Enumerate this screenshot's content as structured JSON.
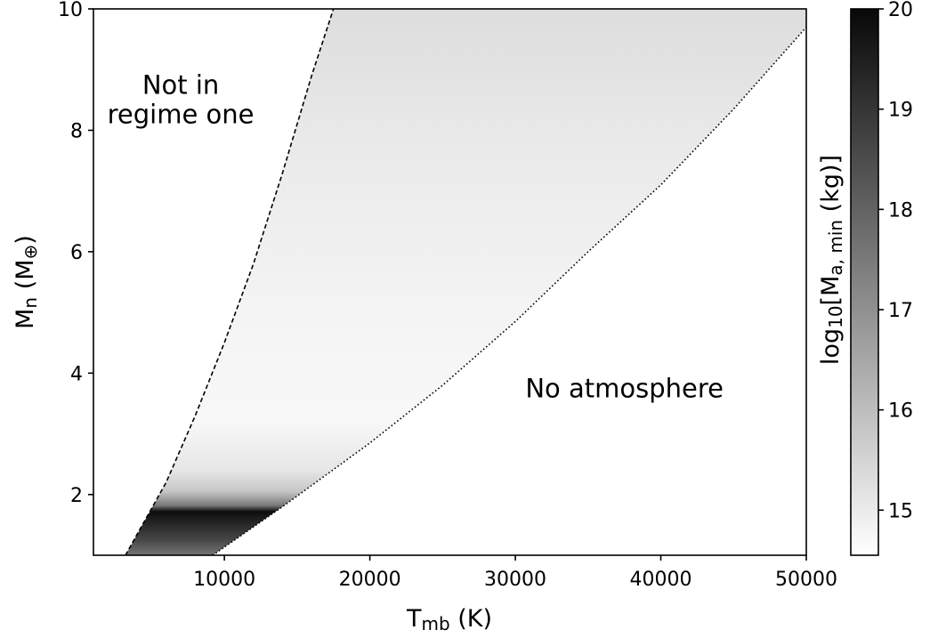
{
  "chart_data": {
    "type": "heatmap",
    "x": {
      "range": [
        1000,
        50000
      ],
      "ticks": [
        10000,
        20000,
        30000,
        40000,
        50000
      ],
      "tick_labels": [
        "10000",
        "20000",
        "30000",
        "40000",
        "50000"
      ],
      "label_main": "T",
      "label_sub": "mb",
      "label_unit": " (K)"
    },
    "y": {
      "range": [
        1,
        10
      ],
      "ticks": [
        2,
        4,
        6,
        8,
        10
      ],
      "tick_labels": [
        "2",
        "4",
        "6",
        "8",
        "10"
      ],
      "label_main": "M",
      "label_sub": "n",
      "label_unit_open": " (M",
      "label_unit_sub": "⊕",
      "label_unit_close": ")"
    },
    "colorbar": {
      "range": [
        14.55,
        20.0
      ],
      "ticks": [
        15,
        16,
        17,
        18,
        19,
        20
      ],
      "tick_labels": [
        "15",
        "16",
        "17",
        "18",
        "19",
        "20"
      ],
      "label_pre": "log",
      "label_sub1": "10",
      "label_mid": "[M",
      "label_sub2": "a, min",
      "label_post": " (kg)]",
      "colormap": "Greys (white = low, black = high)"
    },
    "boundaries": [
      {
        "name": "regime one limit",
        "style": "dashed",
        "points": [
          [
            3200,
            1.0
          ],
          [
            6000,
            2.2
          ],
          [
            8000,
            3.3
          ],
          [
            10000,
            4.5
          ],
          [
            12000,
            5.8
          ],
          [
            14000,
            7.3
          ],
          [
            16000,
            8.9
          ],
          [
            17500,
            10.0
          ]
        ]
      },
      {
        "name": "no-atmosphere limit",
        "style": "dotted",
        "points": [
          [
            9200,
            1.0
          ],
          [
            14000,
            1.8
          ],
          [
            20000,
            2.85
          ],
          [
            25000,
            3.8
          ],
          [
            30000,
            4.85
          ],
          [
            35000,
            6.0
          ],
          [
            40000,
            7.1
          ],
          [
            45000,
            8.35
          ],
          [
            50000,
            9.7
          ]
        ]
      }
    ],
    "value_profile": [
      {
        "y": 1.0,
        "value": 17.6
      },
      {
        "y": 1.25,
        "value": 18.6
      },
      {
        "y": 1.55,
        "value": 19.4
      },
      {
        "y": 1.72,
        "value": 19.9
      },
      {
        "y": 1.82,
        "value": 17.5
      },
      {
        "y": 2.05,
        "value": 15.8
      },
      {
        "y": 2.4,
        "value": 15.1
      },
      {
        "y": 3.2,
        "value": 14.7
      },
      {
        "y": 5.0,
        "value": 14.8
      },
      {
        "y": 7.5,
        "value": 15.0
      },
      {
        "y": 10.0,
        "value": 15.3
      }
    ],
    "annotations": [
      {
        "lines": [
          "Not in",
          "regime one"
        ],
        "x": 7000,
        "y": 8.6
      },
      {
        "lines": [
          "No atmosphere"
        ],
        "x": 37500,
        "y": 3.6
      }
    ]
  }
}
